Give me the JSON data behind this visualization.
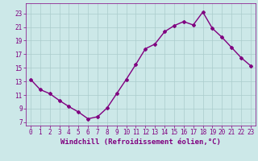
{
  "x": [
    0,
    1,
    2,
    3,
    4,
    5,
    6,
    7,
    8,
    9,
    10,
    11,
    12,
    13,
    14,
    15,
    16,
    17,
    18,
    19,
    20,
    21,
    22,
    23
  ],
  "y": [
    13.3,
    11.8,
    11.2,
    10.2,
    9.3,
    8.5,
    7.5,
    7.8,
    9.1,
    11.2,
    13.3,
    15.5,
    17.8,
    18.5,
    20.3,
    21.2,
    21.8,
    21.3,
    23.2,
    20.8,
    19.5,
    18.0,
    16.5,
    15.3
  ],
  "line_color": "#800080",
  "marker": "D",
  "marker_size": 2,
  "bg_color": "#cce8e8",
  "grid_color": "#aacccc",
  "xlabel": "Windchill (Refroidissement éolien,°C)",
  "xlabel_color": "#800080",
  "xlabel_fontsize": 6.5,
  "yticks": [
    7,
    9,
    11,
    13,
    15,
    17,
    19,
    21,
    23
  ],
  "xticks": [
    0,
    1,
    2,
    3,
    4,
    5,
    6,
    7,
    8,
    9,
    10,
    11,
    12,
    13,
    14,
    15,
    16,
    17,
    18,
    19,
    20,
    21,
    22,
    23
  ],
  "ylim": [
    6.5,
    24.5
  ],
  "xlim": [
    -0.5,
    23.5
  ],
  "tick_color": "#800080",
  "tick_fontsize": 5.5,
  "line_width": 1.0
}
